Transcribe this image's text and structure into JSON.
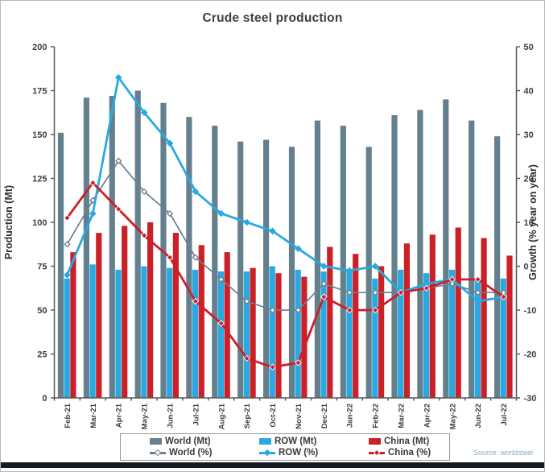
{
  "title": "Crude steel production",
  "source": "Source: worldsteel",
  "colors": {
    "world_bar": "#64808e",
    "row": "#29a9e1",
    "china": "#cb2027",
    "world_line": "#6d808f",
    "axis": "#595959",
    "tick_text": "#3f3f3f",
    "title_text": "#3f3f3f",
    "source_text": "#88abc8",
    "bottom_band": "#141a21"
  },
  "chart_data": {
    "type": "bar",
    "subtype": "combo bar+line, dual axis",
    "title": "Crude steel production",
    "grid": "off",
    "legend_position": "bottom",
    "categories": [
      "Feb-21",
      "Mar-21",
      "Apr-21",
      "May-21",
      "Jun-21",
      "Jul-21",
      "Aug-21",
      "Sep-21",
      "Oct-21",
      "Nov-21",
      "Dec-21",
      "Jan-22",
      "Feb-22",
      "Mar-22",
      "Apr-22",
      "May-22",
      "Jun-22",
      "Jul-22"
    ],
    "left_axis": {
      "label": "Production (Mt)",
      "min": 0,
      "max": 200,
      "step": 25
    },
    "right_axis": {
      "label": "Growth (% year on year)",
      "min": -30,
      "max": 50,
      "step": 10
    },
    "series": [
      {
        "name": "World (Mt)",
        "type": "bar",
        "axis": "left",
        "color": "#64808e",
        "values": [
          151,
          171,
          172,
          175,
          168,
          160,
          155,
          146,
          147,
          143,
          158,
          155,
          143,
          161,
          164,
          170,
          158,
          149
        ]
      },
      {
        "name": "ROW (Mt)",
        "type": "bar",
        "axis": "left",
        "color": "#29a9e1",
        "values": [
          68,
          76,
          73,
          75,
          74,
          73,
          72,
          72,
          75,
          73,
          72,
          72,
          68,
          73,
          71,
          73,
          67,
          68
        ]
      },
      {
        "name": "China (Mt)",
        "type": "bar",
        "axis": "left",
        "color": "#cb2027",
        "values": [
          83,
          94,
          98,
          100,
          94,
          87,
          83,
          74,
          71,
          69,
          86,
          82,
          75,
          88,
          93,
          97,
          91,
          81
        ]
      },
      {
        "name": "World (%)",
        "type": "line",
        "axis": "right",
        "color": "#6d808f",
        "marker": "hollow",
        "values": [
          5,
          15,
          24,
          17,
          12,
          2,
          -3,
          -8,
          -10,
          -10,
          -4,
          -6,
          -6,
          -6,
          -5,
          -4,
          -6,
          -6
        ]
      },
      {
        "name": "ROW (%)",
        "type": "line",
        "axis": "right",
        "color": "#29a9e1",
        "marker": "solid",
        "values": [
          -2,
          12,
          43,
          35,
          28,
          17,
          12,
          10,
          8,
          4,
          0,
          -1,
          0,
          -6,
          -4,
          -3,
          -8,
          -7
        ]
      },
      {
        "name": "China (%)",
        "type": "line",
        "axis": "right",
        "color": "#cb2027",
        "marker": "solid-edged",
        "values": [
          11,
          19,
          13,
          7,
          2,
          -8,
          -13,
          -21,
          -23,
          -22,
          -7,
          -10,
          -10,
          -6,
          -5,
          -3,
          -3,
          -7
        ]
      }
    ],
    "legend": [
      "World (Mt)",
      "ROW (Mt)",
      "China (Mt)",
      "World (%)",
      "ROW (%)",
      "China (%)"
    ]
  }
}
